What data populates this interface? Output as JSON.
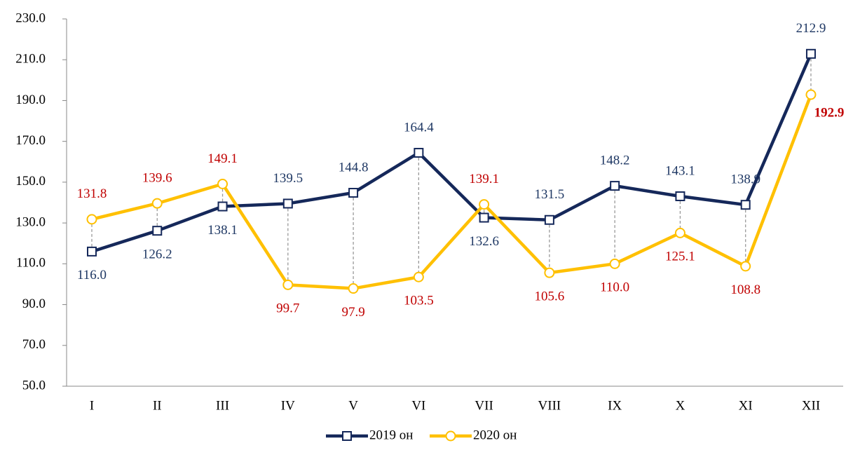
{
  "chart_data": {
    "type": "line",
    "categories": [
      "I",
      "II",
      "III",
      "IV",
      "V",
      "VI",
      "VII",
      "VIII",
      "IX",
      "X",
      "XI",
      "XII"
    ],
    "series": [
      {
        "name": "2019 он",
        "color": "#15285a",
        "label_color": "#1f3864",
        "values": [
          116.0,
          126.2,
          138.1,
          139.5,
          144.8,
          164.4,
          132.6,
          131.5,
          148.2,
          143.1,
          138.9,
          212.9
        ],
        "value_labels": [
          "116.0",
          "126.2",
          "138.1",
          "139.5",
          "144.8",
          "164.4",
          "132.6",
          "131.5",
          "148.2",
          "143.1",
          "138.9",
          "212.9"
        ]
      },
      {
        "name": "2020 он",
        "color": "#ffc000",
        "label_color": "#c00000",
        "values": [
          131.8,
          139.6,
          149.1,
          99.7,
          97.9,
          103.5,
          139.1,
          105.6,
          110.0,
          125.1,
          108.8,
          192.9
        ],
        "value_labels": [
          "131.8",
          "139.6",
          "149.1",
          "99.7",
          "97.9",
          "103.5",
          "139.1",
          "105.6",
          "110.0",
          "125.1",
          "108.8",
          "192.9"
        ]
      }
    ],
    "ylim": [
      50,
      230
    ],
    "yticks": [
      {
        "value": 50,
        "label": "50.0"
      },
      {
        "value": 70,
        "label": "70.0"
      },
      {
        "value": 90,
        "label": "90.0"
      },
      {
        "value": 110,
        "label": "110.0"
      },
      {
        "value": 130,
        "label": "130.0"
      },
      {
        "value": 150,
        "label": "150.0"
      },
      {
        "value": 170,
        "label": "170.0"
      },
      {
        "value": 190,
        "label": "190.0"
      },
      {
        "value": 210,
        "label": "210.0"
      },
      {
        "value": 230,
        "label": "230.0"
      }
    ],
    "grid": false,
    "legend": "bottom"
  }
}
